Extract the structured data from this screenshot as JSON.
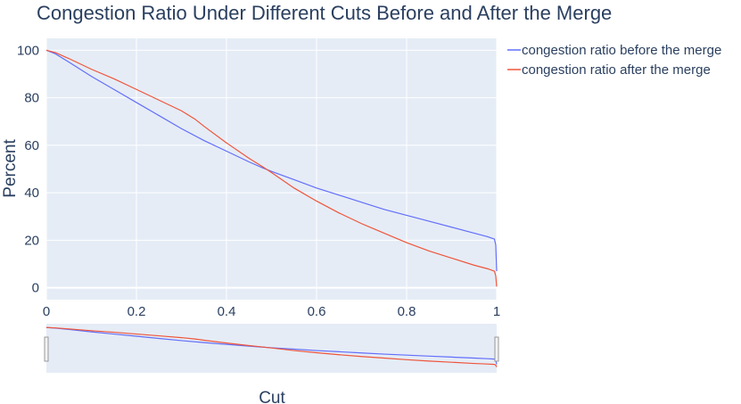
{
  "chart_data": {
    "type": "line",
    "title": "Congestion Ratio Under Different Cuts Before and After the Merge",
    "xlabel": "Cut",
    "ylabel": "Percent",
    "xlim": [
      0,
      1
    ],
    "ylim": [
      -5,
      105
    ],
    "x_ticks": [
      "0",
      "0.2",
      "0.4",
      "0.6",
      "0.8",
      "1"
    ],
    "y_ticks": [
      "0",
      "20",
      "40",
      "60",
      "80",
      "100"
    ],
    "grid": true,
    "legend_position": "top-right outside",
    "range_slider": true,
    "series": [
      {
        "name": "congestion ratio before the merge",
        "color": "#636efa",
        "x": [
          0,
          0.02,
          0.05,
          0.1,
          0.15,
          0.2,
          0.25,
          0.3,
          0.35,
          0.4,
          0.45,
          0.48,
          0.5,
          0.55,
          0.6,
          0.65,
          0.7,
          0.75,
          0.8,
          0.85,
          0.9,
          0.95,
          0.98,
          0.995,
          0.998,
          1.0
        ],
        "y": [
          100,
          98.5,
          95,
          89,
          83.5,
          78,
          72.5,
          67,
          62,
          57.5,
          53,
          50.5,
          49,
          45.5,
          42,
          39,
          36,
          33,
          30.5,
          28,
          25.5,
          23,
          21.5,
          20.5,
          18,
          7
        ]
      },
      {
        "name": "congestion ratio after the merge",
        "color": "#ef553b",
        "x": [
          0,
          0.02,
          0.05,
          0.1,
          0.15,
          0.2,
          0.25,
          0.3,
          0.33,
          0.35,
          0.4,
          0.45,
          0.48,
          0.5,
          0.55,
          0.6,
          0.65,
          0.7,
          0.75,
          0.8,
          0.85,
          0.9,
          0.95,
          0.98,
          0.995,
          0.998,
          1.0
        ],
        "y": [
          100,
          99,
          96.5,
          92,
          88,
          83.5,
          79,
          74.5,
          71,
          68,
          61,
          54.5,
          51,
          48.5,
          42,
          36.5,
          31.5,
          27,
          23,
          19,
          15.5,
          12.5,
          9.5,
          8,
          7,
          5,
          0.5
        ]
      }
    ]
  }
}
